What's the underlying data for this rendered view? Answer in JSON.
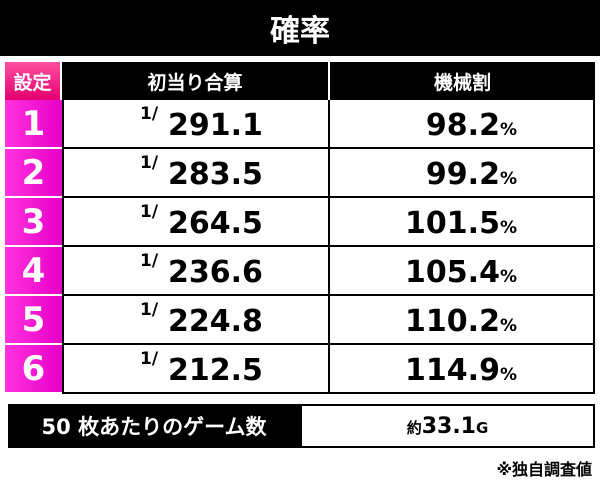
{
  "title": "確率",
  "table": {
    "header": [
      "設定",
      "初当り合算",
      "機械割"
    ],
    "rows": [
      {
        "setting": "1",
        "odds_prefix": "1/",
        "odds": "291.1",
        "payout": "98.2",
        "unit": "%"
      },
      {
        "setting": "2",
        "odds_prefix": "1/",
        "odds": "283.5",
        "payout": "99.2",
        "unit": "%"
      },
      {
        "setting": "3",
        "odds_prefix": "1/",
        "odds": "264.5",
        "payout": "101.5",
        "unit": "%"
      },
      {
        "setting": "4",
        "odds_prefix": "1/",
        "odds": "236.6",
        "payout": "105.4",
        "unit": "%"
      },
      {
        "setting": "5",
        "odds_prefix": "1/",
        "odds": "224.8",
        "payout": "110.2",
        "unit": "%"
      },
      {
        "setting": "6",
        "odds_prefix": "1/",
        "odds": "212.5",
        "payout": "114.9",
        "unit": "%"
      }
    ]
  },
  "footer": {
    "label": "50 枚あたりのゲーム数",
    "prefix": "約",
    "value": "33.1",
    "unit": "G"
  },
  "note": "※独自調査値"
}
